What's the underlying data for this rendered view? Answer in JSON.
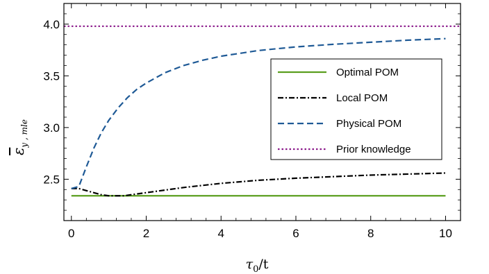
{
  "chart_data": {
    "type": "line",
    "xlabel_main": "τ",
    "xlabel_sub": "0",
    "xlabel_tail": "/t",
    "ylabel_main": "ε",
    "ylabel_sub": "y , mle",
    "xlim": [
      -0.2,
      10.4
    ],
    "ylim": [
      2.1,
      4.2
    ],
    "x_ticks": [
      0,
      2,
      4,
      6,
      8,
      10
    ],
    "x_tick_labels": [
      "0",
      "2",
      "4",
      "6",
      "8",
      "10"
    ],
    "y_ticks": [
      2.5,
      3.0,
      3.5,
      4.0
    ],
    "y_tick_labels": [
      "2.5",
      "3.0",
      "3.5",
      "4.0"
    ],
    "legend_position": "center-right",
    "series": [
      {
        "name": "Optimal POM",
        "color": "#5a9e1e",
        "dash": "solid",
        "x": [
          0,
          10
        ],
        "y": [
          2.34,
          2.34
        ]
      },
      {
        "name": "Local POM",
        "color": "#000000",
        "dash": "dashdot",
        "x": [
          0,
          0.2,
          0.4,
          0.6,
          0.8,
          1.0,
          1.2,
          1.4,
          1.6,
          1.8,
          2.0,
          2.5,
          3.0,
          3.5,
          4.0,
          5.0,
          6.0,
          7.0,
          8.0,
          9.0,
          10.0
        ],
        "y": [
          2.41,
          2.41,
          2.39,
          2.37,
          2.35,
          2.34,
          2.34,
          2.34,
          2.35,
          2.36,
          2.37,
          2.395,
          2.42,
          2.44,
          2.46,
          2.49,
          2.51,
          2.525,
          2.54,
          2.55,
          2.56
        ]
      },
      {
        "name": "Physical POM",
        "color": "#1f5a96",
        "dash": "dashed",
        "x": [
          0,
          0.2,
          0.4,
          0.6,
          0.8,
          1.0,
          1.25,
          1.5,
          1.75,
          2.0,
          2.5,
          3.0,
          3.5,
          4.0,
          5.0,
          6.0,
          7.0,
          8.0,
          9.0,
          10.0
        ],
        "y": [
          2.41,
          2.43,
          2.62,
          2.8,
          2.95,
          3.07,
          3.19,
          3.29,
          3.37,
          3.43,
          3.53,
          3.6,
          3.65,
          3.69,
          3.745,
          3.78,
          3.805,
          3.825,
          3.845,
          3.86
        ]
      },
      {
        "name": "Prior knowledge",
        "color": "#8b1a8b",
        "dash": "dotted",
        "x": [
          -0.2,
          10.4
        ],
        "y": [
          3.98,
          3.98
        ]
      }
    ]
  }
}
